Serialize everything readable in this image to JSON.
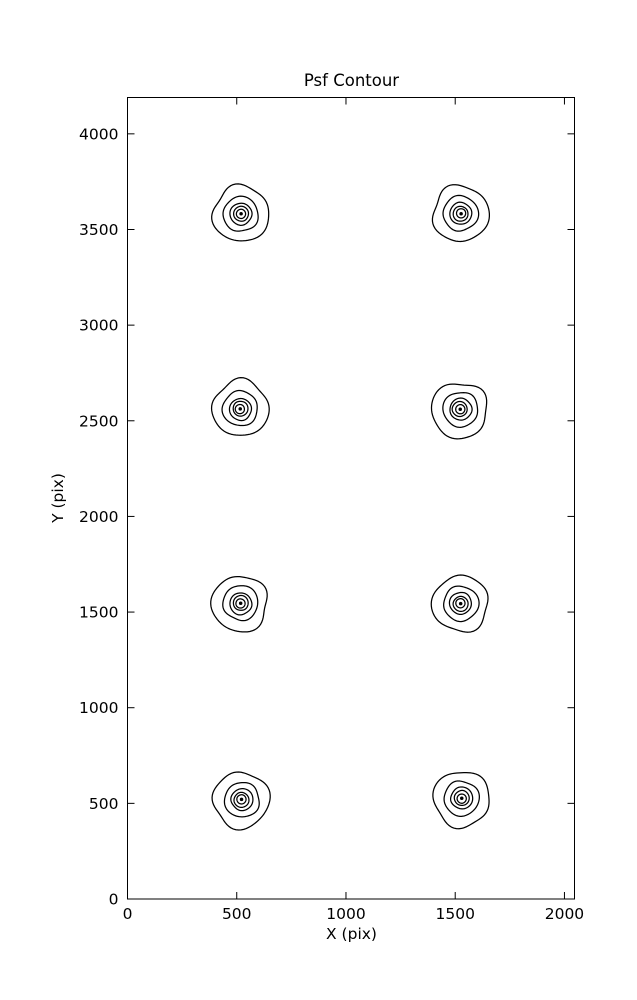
{
  "figure": {
    "background_color": "#ffffff"
  },
  "chart_data": {
    "type": "contour",
    "title": "Psf Contour",
    "xlabel": "X (pix)",
    "ylabel": "Y (pix)",
    "xlim": [
      0,
      2046
    ],
    "ylim": [
      0,
      4190
    ],
    "xticks": [
      0,
      500,
      1000,
      1500,
      2000
    ],
    "yticks": [
      0,
      500,
      1000,
      1500,
      2000,
      2500,
      3000,
      3500,
      4000
    ],
    "grid": false,
    "legend": null,
    "line_color": "#000000",
    "background_color": "#ffffff",
    "psf_positions": [
      {
        "x": 520,
        "y": 3582
      },
      {
        "x": 1527,
        "y": 3582
      },
      {
        "x": 516,
        "y": 2562
      },
      {
        "x": 1523,
        "y": 2560
      },
      {
        "x": 518,
        "y": 1546
      },
      {
        "x": 1525,
        "y": 1544
      },
      {
        "x": 522,
        "y": 521
      },
      {
        "x": 1530,
        "y": 527
      }
    ],
    "contour_radii_x": [
      128,
      80,
      50,
      34,
      21
    ],
    "contour_radii_y": [
      146,
      91,
      57,
      39,
      24
    ],
    "center_dot_radius": 8
  }
}
